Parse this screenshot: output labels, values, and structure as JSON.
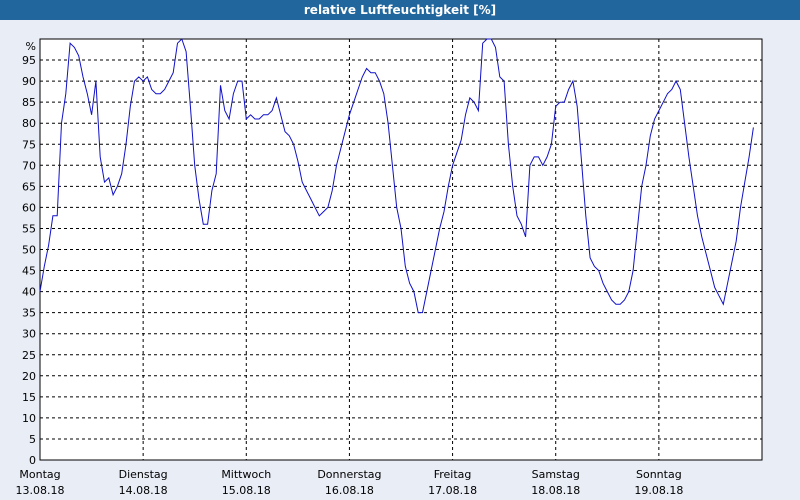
{
  "window": {
    "title": "relative Luftfeuchtigkeit [%]"
  },
  "colors": {
    "title_bar": "#21669d",
    "background": "#e9edf6",
    "plot_area": "#ffffff",
    "series": "#1010c8",
    "grid": "#000000"
  },
  "chart_data": {
    "type": "line",
    "title": "relative Luftfeuchtigkeit [%]",
    "ylabel": "%",
    "ylim": [
      0,
      100
    ],
    "y_ticks": [
      0,
      5,
      10,
      15,
      20,
      25,
      30,
      35,
      40,
      45,
      50,
      55,
      60,
      65,
      70,
      75,
      80,
      85,
      90,
      95
    ],
    "y_unit_label": "%",
    "grid": "dashed",
    "x_ticks": [
      {
        "day": "Montag",
        "date": "13.08.18",
        "x": 0
      },
      {
        "day": "Dienstag",
        "date": "14.08.18",
        "x": 24
      },
      {
        "day": "Mittwoch",
        "date": "15.08.18",
        "x": 48
      },
      {
        "day": "Donnerstag",
        "date": "16.08.18",
        "x": 72
      },
      {
        "day": "Freitag",
        "date": "17.08.18",
        "x": 96
      },
      {
        "day": "Samstag",
        "date": "18.08.18",
        "x": 120
      },
      {
        "day": "Sonntag",
        "date": "19.08.18",
        "x": 144
      }
    ],
    "xlim": [
      0,
      168
    ],
    "series": [
      {
        "points": [
          [
            0,
            40
          ],
          [
            1,
            46
          ],
          [
            2,
            51
          ],
          [
            3,
            58
          ],
          [
            4,
            58
          ],
          [
            5,
            80
          ],
          [
            6,
            87
          ],
          [
            7,
            99
          ],
          [
            8,
            98
          ],
          [
            9,
            96
          ],
          [
            10,
            91
          ],
          [
            11,
            87
          ],
          [
            12,
            82
          ],
          [
            13,
            90
          ],
          [
            14,
            72
          ],
          [
            15,
            66
          ],
          [
            16,
            67
          ],
          [
            17,
            63
          ],
          [
            18,
            65
          ],
          [
            19,
            68
          ],
          [
            20,
            75
          ],
          [
            21,
            84
          ],
          [
            22,
            90
          ],
          [
            23,
            91
          ],
          [
            24,
            90
          ],
          [
            25,
            91
          ],
          [
            26,
            88
          ],
          [
            27,
            87
          ],
          [
            28,
            87
          ],
          [
            29,
            88
          ],
          [
            30,
            90
          ],
          [
            31,
            92
          ],
          [
            32,
            99
          ],
          [
            33,
            100
          ],
          [
            34,
            97
          ],
          [
            35,
            84
          ],
          [
            36,
            70
          ],
          [
            37,
            62
          ],
          [
            38,
            56
          ],
          [
            39,
            56
          ],
          [
            40,
            64
          ],
          [
            41,
            68
          ],
          [
            42,
            89
          ],
          [
            43,
            83
          ],
          [
            44,
            81
          ],
          [
            45,
            87
          ],
          [
            46,
            90
          ],
          [
            47,
            90
          ],
          [
            48,
            81
          ],
          [
            49,
            82
          ],
          [
            50,
            81
          ],
          [
            51,
            81
          ],
          [
            52,
            82
          ],
          [
            53,
            82
          ],
          [
            54,
            83
          ],
          [
            55,
            86
          ],
          [
            56,
            82
          ],
          [
            57,
            78
          ],
          [
            58,
            77
          ],
          [
            59,
            75
          ],
          [
            60,
            71
          ],
          [
            61,
            66
          ],
          [
            62,
            64
          ],
          [
            63,
            62
          ],
          [
            64,
            60
          ],
          [
            65,
            58
          ],
          [
            66,
            59
          ],
          [
            67,
            60
          ],
          [
            68,
            64
          ],
          [
            69,
            70
          ],
          [
            70,
            74
          ],
          [
            71,
            78
          ],
          [
            72,
            82
          ],
          [
            73,
            85
          ],
          [
            74,
            88
          ],
          [
            75,
            91
          ],
          [
            76,
            93
          ],
          [
            77,
            92
          ],
          [
            78,
            92
          ],
          [
            79,
            90
          ],
          [
            80,
            87
          ],
          [
            81,
            80
          ],
          [
            82,
            70
          ],
          [
            83,
            60
          ],
          [
            84,
            55
          ],
          [
            85,
            46
          ],
          [
            86,
            42
          ],
          [
            87,
            40
          ],
          [
            88,
            35
          ],
          [
            89,
            35
          ],
          [
            90,
            40
          ],
          [
            91,
            45
          ],
          [
            92,
            50
          ],
          [
            93,
            55
          ],
          [
            94,
            59
          ],
          [
            95,
            65
          ],
          [
            96,
            70
          ],
          [
            97,
            73
          ],
          [
            98,
            76
          ],
          [
            99,
            82
          ],
          [
            100,
            86
          ],
          [
            101,
            85
          ],
          [
            102,
            83
          ],
          [
            103,
            99
          ],
          [
            104,
            100
          ],
          [
            105,
            100
          ],
          [
            106,
            98
          ],
          [
            107,
            91
          ],
          [
            108,
            90
          ],
          [
            109,
            75
          ],
          [
            110,
            65
          ],
          [
            111,
            58
          ],
          [
            112,
            56
          ],
          [
            113,
            53
          ],
          [
            114,
            70
          ],
          [
            115,
            72
          ],
          [
            116,
            72
          ],
          [
            117,
            70
          ],
          [
            118,
            72
          ],
          [
            119,
            75
          ],
          [
            120,
            84
          ],
          [
            121,
            85
          ],
          [
            122,
            85
          ],
          [
            123,
            88
          ],
          [
            124,
            90
          ],
          [
            125,
            84
          ],
          [
            126,
            71
          ],
          [
            127,
            58
          ],
          [
            128,
            48
          ],
          [
            129,
            46
          ],
          [
            130,
            45
          ],
          [
            131,
            42
          ],
          [
            132,
            40
          ],
          [
            133,
            38
          ],
          [
            134,
            37
          ],
          [
            135,
            37
          ],
          [
            136,
            38
          ],
          [
            137,
            40
          ],
          [
            138,
            45
          ],
          [
            139,
            55
          ],
          [
            140,
            65
          ],
          [
            141,
            70
          ],
          [
            142,
            77
          ],
          [
            143,
            81
          ],
          [
            144,
            83
          ],
          [
            145,
            85
          ],
          [
            146,
            87
          ],
          [
            147,
            88
          ],
          [
            148,
            90
          ],
          [
            149,
            88
          ],
          [
            150,
            80
          ],
          [
            151,
            72
          ],
          [
            152,
            65
          ],
          [
            153,
            58
          ],
          [
            154,
            53
          ],
          [
            155,
            49
          ],
          [
            156,
            45
          ],
          [
            157,
            41
          ],
          [
            158,
            39
          ],
          [
            159,
            37
          ],
          [
            160,
            42
          ],
          [
            161,
            47
          ],
          [
            162,
            52
          ],
          [
            163,
            60
          ],
          [
            164,
            66
          ],
          [
            165,
            72
          ],
          [
            166,
            79
          ]
        ]
      }
    ]
  }
}
